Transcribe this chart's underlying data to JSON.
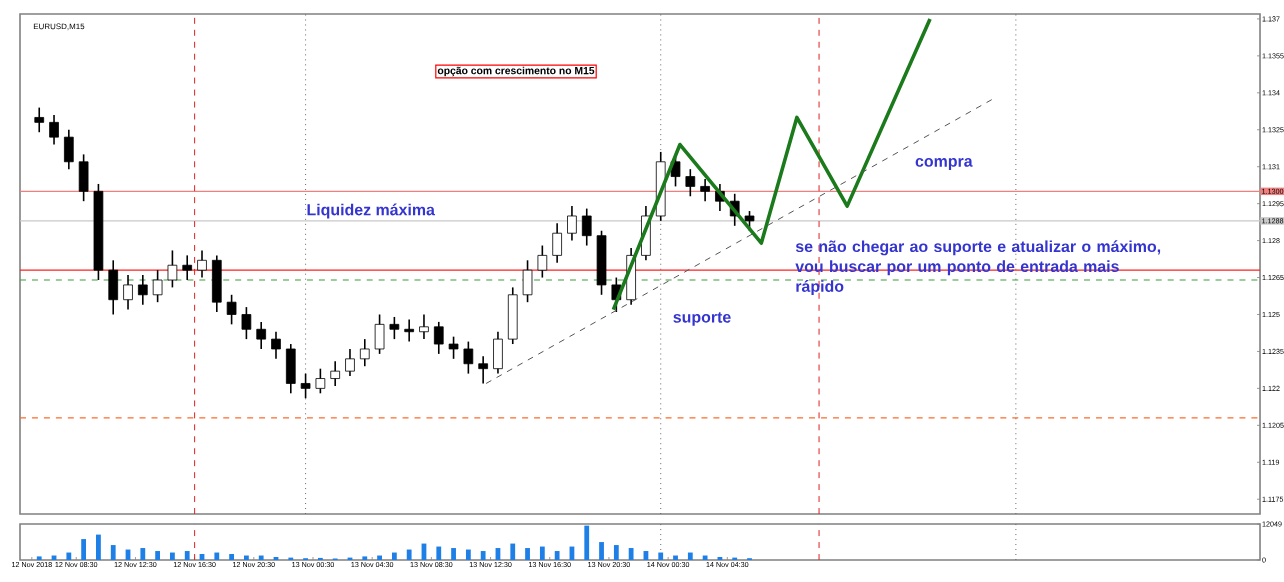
{
  "chart_data": [
    {
      "type": "candlestick",
      "title": "EURUSD,M15",
      "tick_labels": "y",
      "x": [
        "2018-11-12T06:00",
        "2018-11-12T07:00",
        "2018-11-12T08:00",
        "2018-11-12T09:00",
        "2018-11-12T10:00",
        "2018-11-12T11:00",
        "2018-11-12T12:00",
        "2018-11-12T13:00",
        "2018-11-12T14:00",
        "2018-11-12T15:00",
        "2018-11-12T16:00",
        "2018-11-12T17:00",
        "2018-11-12T18:00",
        "2018-11-12T19:00",
        "2018-11-12T20:00",
        "2018-11-12T21:00",
        "2018-11-12T22:00",
        "2018-11-12T23:00",
        "2018-11-13T00:00",
        "2018-11-13T01:00",
        "2018-11-13T02:00",
        "2018-11-13T03:00",
        "2018-11-13T04:00",
        "2018-11-13T05:00",
        "2018-11-13T06:00",
        "2018-11-13T07:00",
        "2018-11-13T08:00",
        "2018-11-13T09:00",
        "2018-11-13T10:00",
        "2018-11-13T11:00",
        "2018-11-13T12:00",
        "2018-11-13T13:00",
        "2018-11-13T14:00",
        "2018-11-13T15:00",
        "2018-11-13T16:00",
        "2018-11-13T17:00",
        "2018-11-13T18:00",
        "2018-11-13T19:00",
        "2018-11-13T20:00",
        "2018-11-13T21:00",
        "2018-11-13T22:00",
        "2018-11-13T23:00",
        "2018-11-14T00:00",
        "2018-11-14T01:00",
        "2018-11-14T02:00",
        "2018-11-14T03:00",
        "2018-11-14T04:00",
        "2018-11-14T05:00",
        "2018-11-14T06:00"
      ],
      "ohlc": [
        [
          1.133,
          1.1334,
          1.1324,
          1.1328
        ],
        [
          1.1328,
          1.1331,
          1.1319,
          1.1322
        ],
        [
          1.1322,
          1.1325,
          1.1309,
          1.1312
        ],
        [
          1.1312,
          1.1315,
          1.1296,
          1.13
        ],
        [
          1.13,
          1.1303,
          1.1264,
          1.1268
        ],
        [
          1.1268,
          1.1272,
          1.125,
          1.1256
        ],
        [
          1.1256,
          1.1266,
          1.1252,
          1.1262
        ],
        [
          1.1262,
          1.1266,
          1.1254,
          1.1258
        ],
        [
          1.1258,
          1.1268,
          1.1255,
          1.1264
        ],
        [
          1.1264,
          1.1276,
          1.1261,
          1.127
        ],
        [
          1.127,
          1.1274,
          1.1264,
          1.1268
        ],
        [
          1.1268,
          1.1276,
          1.1265,
          1.1272
        ],
        [
          1.1272,
          1.1274,
          1.1251,
          1.1255
        ],
        [
          1.1255,
          1.1258,
          1.1246,
          1.125
        ],
        [
          1.125,
          1.1253,
          1.124,
          1.1244
        ],
        [
          1.1244,
          1.1247,
          1.1236,
          1.124
        ],
        [
          1.124,
          1.1243,
          1.1232,
          1.1236
        ],
        [
          1.1236,
          1.1238,
          1.1218,
          1.1222
        ],
        [
          1.1222,
          1.1226,
          1.1216,
          1.122
        ],
        [
          1.122,
          1.1228,
          1.1218,
          1.1224
        ],
        [
          1.1224,
          1.1231,
          1.1221,
          1.1227
        ],
        [
          1.1227,
          1.1236,
          1.1225,
          1.1232
        ],
        [
          1.1232,
          1.124,
          1.1229,
          1.1236
        ],
        [
          1.1236,
          1.125,
          1.1234,
          1.1246
        ],
        [
          1.1246,
          1.1249,
          1.124,
          1.1244
        ],
        [
          1.1244,
          1.1248,
          1.1239,
          1.1243
        ],
        [
          1.1243,
          1.125,
          1.124,
          1.1245
        ],
        [
          1.1245,
          1.1247,
          1.1234,
          1.1238
        ],
        [
          1.1238,
          1.1241,
          1.1232,
          1.1236
        ],
        [
          1.1236,
          1.1239,
          1.1226,
          1.123
        ],
        [
          1.123,
          1.1233,
          1.1222,
          1.1228
        ],
        [
          1.1228,
          1.1243,
          1.1226,
          1.124
        ],
        [
          1.124,
          1.1261,
          1.1238,
          1.1258
        ],
        [
          1.1258,
          1.1272,
          1.1255,
          1.1268
        ],
        [
          1.1268,
          1.1278,
          1.1265,
          1.1274
        ],
        [
          1.1274,
          1.1287,
          1.1271,
          1.1283
        ],
        [
          1.1283,
          1.1294,
          1.128,
          1.129
        ],
        [
          1.129,
          1.1293,
          1.1278,
          1.1282
        ],
        [
          1.1282,
          1.1284,
          1.1258,
          1.1262
        ],
        [
          1.1262,
          1.1265,
          1.1251,
          1.1256
        ],
        [
          1.1256,
          1.1277,
          1.1254,
          1.1274
        ],
        [
          1.1274,
          1.1294,
          1.1272,
          1.129
        ],
        [
          1.129,
          1.1316,
          1.1288,
          1.1312
        ],
        [
          1.1312,
          1.1315,
          1.1302,
          1.1306
        ],
        [
          1.1306,
          1.1309,
          1.1298,
          1.1302
        ],
        [
          1.1302,
          1.1305,
          1.1296,
          1.13
        ],
        [
          1.13,
          1.1303,
          1.1292,
          1.1296
        ],
        [
          1.1296,
          1.1299,
          1.1286,
          1.129
        ],
        [
          1.129,
          1.1292,
          1.1284,
          1.1288
        ]
      ],
      "series": [
        {
          "type": "line",
          "color": "#1b7a1b",
          "x": [
            "2018-11-13T20:48",
            "2018-11-14T01:18",
            "2018-11-14T06:48",
            "2018-11-14T09:12",
            "2018-11-14T12:36",
            "2018-11-14T18:12"
          ],
          "values": [
            1.1252,
            1.1319,
            1.1279,
            1.133,
            1.1294,
            1.137
          ]
        },
        {
          "type": "line",
          "color": "#555555",
          "line_style": "dashed",
          "x": [
            "2018-11-13T12:12",
            "2018-11-14T22:36"
          ],
          "values": [
            1.1222,
            1.1338
          ]
        }
      ],
      "xlim": [
        "2018-11-12T04:42",
        "2018-11-15T16:30"
      ],
      "ylim": [
        1.1169,
        1.1372
      ],
      "yticks": [
        1.1175,
        1.119,
        1.1205,
        1.122,
        1.1235,
        1.125,
        1.1265,
        1.128,
        1.1295,
        1.131,
        1.1325,
        1.134,
        1.1355,
        1.137
      ],
      "ref_lines": [
        {
          "axis": "y",
          "value": 1.13,
          "label": "1.1300",
          "color": "#f08080"
        },
        {
          "axis": "y",
          "value": 1.1288,
          "label": "1.1288",
          "color": "#c8c8c8"
        },
        {
          "axis": "y",
          "value": 1.1268,
          "color": "#ff2020"
        },
        {
          "axis": "y",
          "value": 1.1264,
          "color": "#3c9a3c",
          "line_style": "dashed"
        },
        {
          "axis": "y",
          "value": 1.1208,
          "color": "#ff6a2a",
          "line_style": "dashed"
        },
        {
          "axis": "x",
          "value": "2018-11-12T16:30",
          "color": "#e02020",
          "line_style": "dashed"
        },
        {
          "axis": "x",
          "value": "2018-11-14T10:42",
          "color": "#e02020",
          "line_style": "dashed"
        },
        {
          "axis": "x",
          "value": "2018-11-13T00:00",
          "color": "#666666",
          "line_style": "dotted"
        },
        {
          "axis": "x",
          "value": "2018-11-14T00:00",
          "color": "#666666",
          "line_style": "dotted"
        },
        {
          "axis": "x",
          "value": "2018-11-15T00:00",
          "color": "#666666",
          "line_style": "dotted"
        }
      ],
      "annotations": [
        "opção com crescimento no M15",
        {
          "text": "Liquidez máxima",
          "x": "2018-11-13T04:24",
          "y": 1.1292
        },
        "compra",
        "suporte",
        {
          "text": "se não chegar ao suporte e atualizar o máximo, vou buscar por um ponto de entrada mais rápido",
          "x": "2018-11-14T21:48",
          "y": 1.1269
        }
      ]
    },
    {
      "type": "bar",
      "color": "#1e7fe6",
      "x": [
        "2018-11-12T06:00",
        "2018-11-12T07:00",
        "2018-11-12T08:00",
        "2018-11-12T09:00",
        "2018-11-12T10:00",
        "2018-11-12T11:00",
        "2018-11-12T12:00",
        "2018-11-12T13:00",
        "2018-11-12T14:00",
        "2018-11-12T15:00",
        "2018-11-12T16:00",
        "2018-11-12T17:00",
        "2018-11-12T18:00",
        "2018-11-12T19:00",
        "2018-11-12T20:00",
        "2018-11-12T21:00",
        "2018-11-12T22:00",
        "2018-11-12T23:00",
        "2018-11-13T00:00",
        "2018-11-13T01:00",
        "2018-11-13T02:00",
        "2018-11-13T03:00",
        "2018-11-13T04:00",
        "2018-11-13T05:00",
        "2018-11-13T06:00",
        "2018-11-13T07:00",
        "2018-11-13T08:00",
        "2018-11-13T09:00",
        "2018-11-13T10:00",
        "2018-11-13T11:00",
        "2018-11-13T12:00",
        "2018-11-13T13:00",
        "2018-11-13T14:00",
        "2018-11-13T15:00",
        "2018-11-13T16:00",
        "2018-11-13T17:00",
        "2018-11-13T18:00",
        "2018-11-13T19:00",
        "2018-11-13T20:00",
        "2018-11-13T21:00",
        "2018-11-13T22:00",
        "2018-11-13T23:00",
        "2018-11-14T00:00",
        "2018-11-14T01:00",
        "2018-11-14T02:00",
        "2018-11-14T03:00",
        "2018-11-14T04:00",
        "2018-11-14T05:00",
        "2018-11-14T06:00"
      ],
      "values": [
        1200,
        1500,
        2500,
        7000,
        8500,
        5000,
        3500,
        4000,
        3000,
        2500,
        3000,
        2000,
        2500,
        2000,
        1500,
        1500,
        1000,
        800,
        600,
        700,
        500,
        800,
        1200,
        1500,
        2500,
        3500,
        5500,
        4500,
        4000,
        3500,
        3000,
        4000,
        5500,
        4000,
        4500,
        3000,
        4500,
        11500,
        6000,
        5000,
        4000,
        3000,
        2500,
        1500,
        2500,
        1500,
        1000,
        800,
        600
      ],
      "xlim": [
        "2018-11-12T04:42",
        "2018-11-15T16:30"
      ],
      "ylim": [
        0,
        12049
      ],
      "yticks": [
        0,
        12049
      ],
      "xticks": [
        {
          "value": "2018-11-12T05:30",
          "label": "12 Nov 2018"
        },
        {
          "value": "2018-11-12T08:30",
          "label": "12 Nov 08:30"
        },
        {
          "value": "2018-11-12T12:30",
          "label": "12 Nov 12:30"
        },
        {
          "value": "2018-11-12T16:30",
          "label": "12 Nov 16:30"
        },
        {
          "value": "2018-11-12T20:30",
          "label": "12 Nov 20:30"
        },
        {
          "value": "2018-11-13T00:30",
          "label": "13 Nov 00:30"
        },
        {
          "value": "2018-11-13T04:30",
          "label": "13 Nov 04:30"
        },
        {
          "value": "2018-11-13T08:30",
          "label": "13 Nov 08:30"
        },
        {
          "value": "2018-11-13T12:30",
          "label": "13 Nov 12:30"
        },
        {
          "value": "2018-11-13T16:30",
          "label": "13 Nov 16:30"
        },
        {
          "value": "2018-11-13T20:30",
          "label": "13 Nov 20:30"
        },
        {
          "value": "2018-11-14T00:30",
          "label": "14 Nov 00:30"
        },
        {
          "value": "2018-11-14T04:30",
          "label": "14 Nov 04:30"
        }
      ],
      "ref_lines": [
        {
          "axis": "x",
          "value": "2018-11-12T16:30",
          "color": "#e02020",
          "line_style": "dashed"
        },
        {
          "axis": "x",
          "value": "2018-11-14T10:42",
          "color": "#e02020",
          "line_style": "dashed"
        },
        {
          "axis": "x",
          "value": "2018-11-14T00:00",
          "color": "#666666",
          "line_style": "dotted"
        },
        {
          "axis": "x",
          "value": "2018-11-15T00:00",
          "color": "#666666",
          "line_style": "dotted"
        }
      ]
    }
  ]
}
